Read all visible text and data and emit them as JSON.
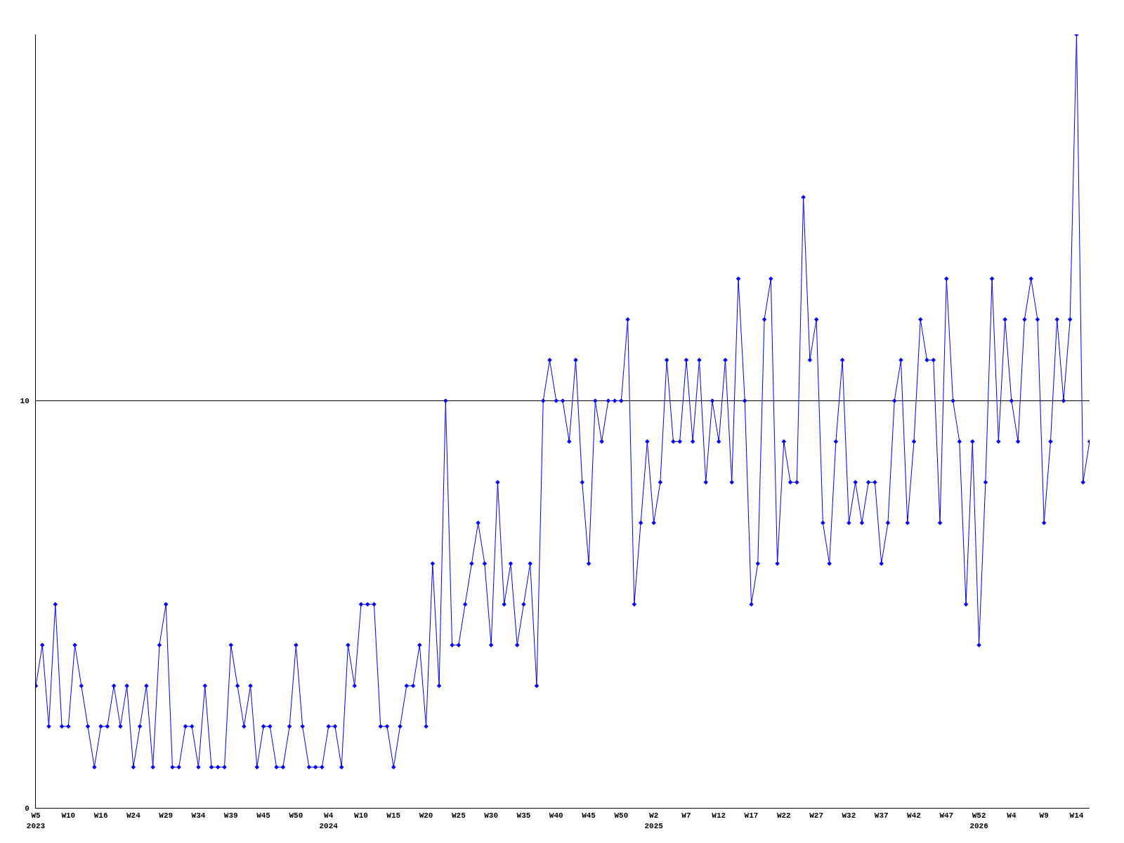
{
  "chart_data": {
    "type": "line",
    "categories": [
      "W5\n2023",
      null,
      null,
      null,
      null,
      "W10",
      null,
      null,
      null,
      null,
      "W16",
      null,
      null,
      null,
      null,
      "W24",
      null,
      null,
      null,
      null,
      "W29",
      null,
      null,
      null,
      null,
      "W34",
      null,
      null,
      null,
      null,
      "W39",
      null,
      null,
      null,
      null,
      "W45",
      null,
      null,
      null,
      null,
      "W50",
      null,
      null,
      null,
      null,
      "W4\n2024",
      null,
      null,
      null,
      null,
      "W10",
      null,
      null,
      null,
      null,
      "W15",
      null,
      null,
      null,
      null,
      "W20",
      null,
      null,
      null,
      null,
      "W25",
      null,
      null,
      null,
      null,
      "W30",
      null,
      null,
      null,
      null,
      "W35",
      null,
      null,
      null,
      null,
      "W40",
      null,
      null,
      null,
      null,
      "W45",
      null,
      null,
      null,
      null,
      "W50",
      null,
      null,
      null,
      null,
      "W2\n2025",
      null,
      null,
      null,
      null,
      "W7",
      null,
      null,
      null,
      null,
      "W12",
      null,
      null,
      null,
      null,
      "W17",
      null,
      null,
      null,
      null,
      "W22",
      null,
      null,
      null,
      null,
      "W27",
      null,
      null,
      null,
      null,
      "W32",
      null,
      null,
      null,
      null,
      "W37",
      null,
      null,
      null,
      null,
      "W42",
      null,
      null,
      null,
      null,
      "W47",
      null,
      null,
      null,
      null,
      "W52\n2026",
      null,
      null,
      null,
      null,
      "W4",
      null,
      null,
      null,
      null,
      "W9",
      null,
      null,
      null,
      null,
      "W14",
      null,
      null
    ],
    "series": [
      {
        "color": "#0000ff",
        "values": [
          3,
          4,
          2,
          5,
          2,
          2,
          4,
          3,
          2,
          1,
          2,
          2,
          3,
          2,
          3,
          1,
          2,
          3,
          1,
          4,
          5,
          1,
          1,
          2,
          2,
          1,
          3,
          1,
          1,
          1,
          4,
          3,
          2,
          3,
          1,
          2,
          2,
          1,
          1,
          2,
          4,
          2,
          1,
          1,
          1,
          2,
          2,
          1,
          4,
          3,
          5,
          5,
          5,
          2,
          2,
          1,
          2,
          3,
          3,
          4,
          2,
          6,
          3,
          10,
          4,
          4,
          5,
          6,
          7,
          6,
          4,
          8,
          5,
          6,
          4,
          5,
          6,
          3,
          10,
          11,
          10,
          10,
          9,
          11,
          8,
          6,
          10,
          9,
          10,
          10,
          10,
          12,
          5,
          7,
          9,
          7,
          8,
          11,
          9,
          9,
          11,
          9,
          11,
          8,
          10,
          9,
          11,
          8,
          13,
          10,
          5,
          6,
          12,
          13,
          6,
          9,
          8,
          8,
          15,
          11,
          12,
          7,
          6,
          9,
          11,
          7,
          8,
          7,
          8,
          8,
          6,
          7,
          10,
          11,
          7,
          9,
          12,
          11,
          11,
          7,
          13,
          10,
          9,
          5,
          9,
          4,
          8,
          13,
          9,
          12,
          10,
          9,
          12,
          13,
          12,
          7,
          9,
          12,
          10,
          12,
          19,
          8,
          9
        ]
      }
    ],
    "ylim": [
      0,
      19
    ],
    "yticks": [
      0,
      10
    ],
    "grid": "y",
    "marker": "diamond",
    "line_style": "solid"
  }
}
